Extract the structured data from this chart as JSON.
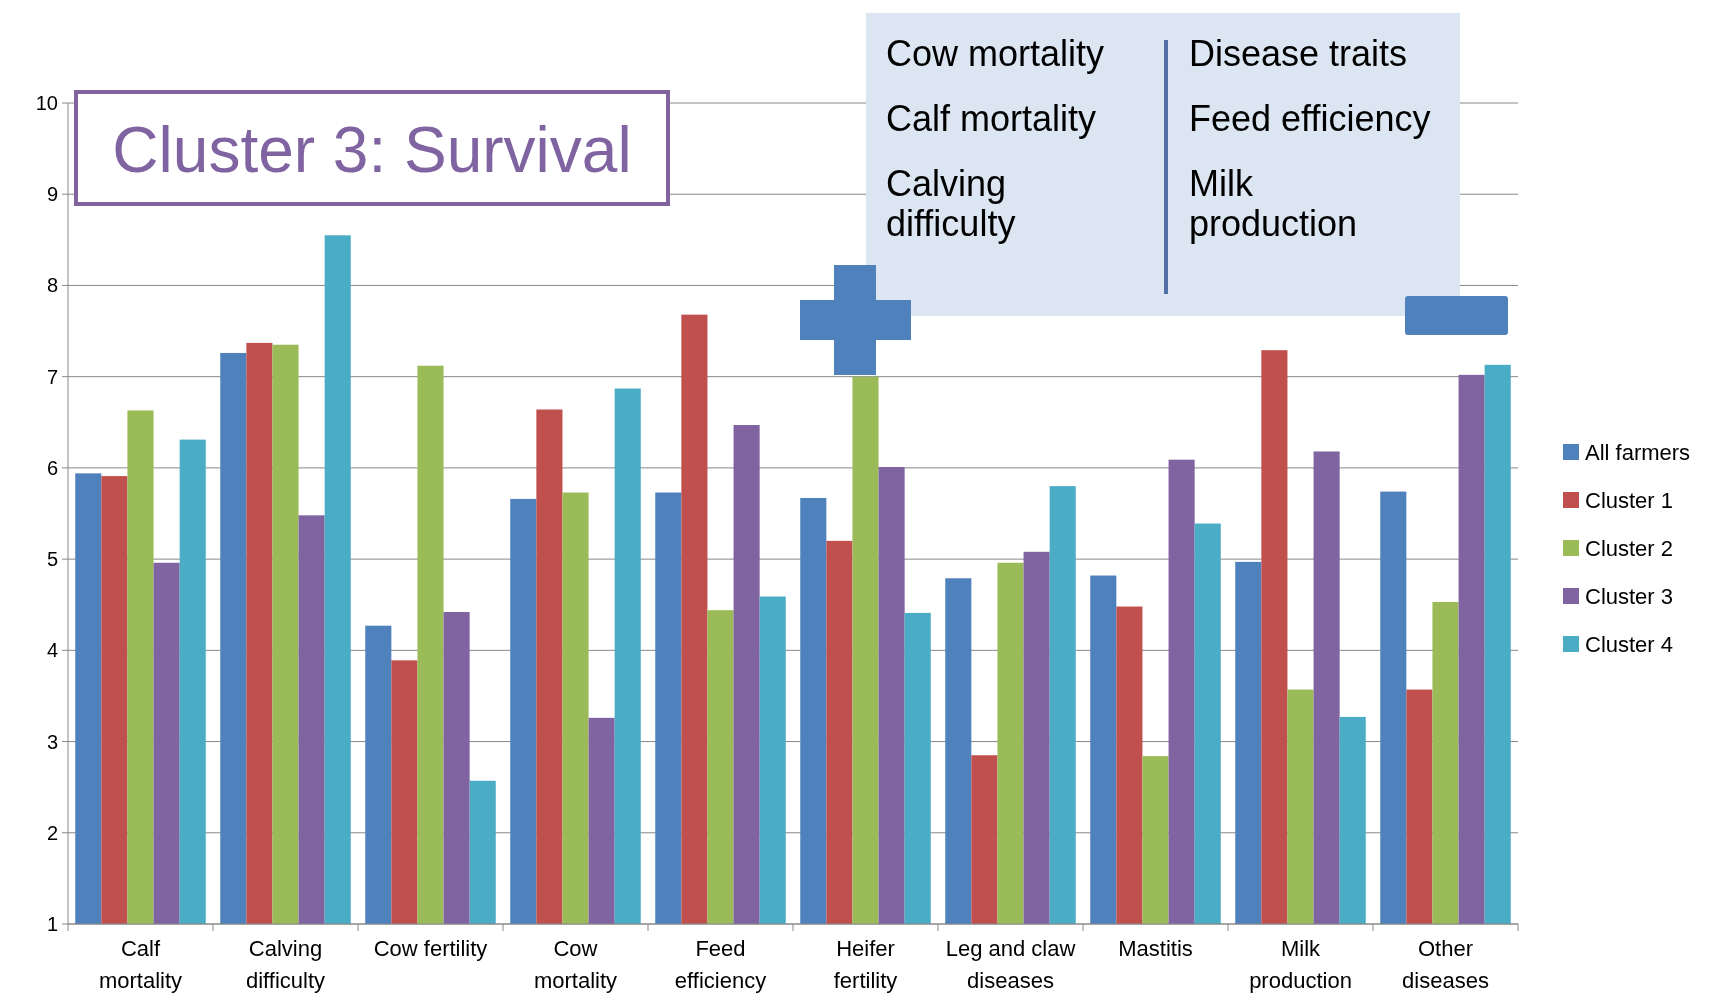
{
  "chart_data": {
    "type": "bar",
    "title": "Cluster 3: Survival",
    "categories": [
      "Calf\nmortality",
      "Calving\ndifficulty",
      "Cow fertility",
      "Cow\nmortality",
      "Feed\nefficiency",
      "Heifer\nfertility",
      "Leg and claw\ndiseases",
      "Mastitis",
      "Milk\nproduction",
      "Other\ndiseases"
    ],
    "series": [
      {
        "name": "All farmers",
        "color": "#4f81bd",
        "values": [
          5.94,
          7.26,
          4.27,
          5.66,
          5.73,
          5.67,
          4.79,
          4.82,
          4.97,
          5.74
        ]
      },
      {
        "name": "Cluster 1",
        "color": "#c0504d",
        "values": [
          5.91,
          7.37,
          3.89,
          6.64,
          7.68,
          5.2,
          2.85,
          4.48,
          7.29,
          3.57
        ]
      },
      {
        "name": "Cluster 2",
        "color": "#9bbb59",
        "values": [
          6.63,
          7.35,
          7.12,
          5.73,
          4.44,
          7.0,
          4.96,
          2.84,
          3.57,
          4.53
        ]
      },
      {
        "name": "Cluster 3",
        "color": "#8064a2",
        "values": [
          4.96,
          5.48,
          4.42,
          3.26,
          6.47,
          6.01,
          5.08,
          6.09,
          6.18,
          7.02
        ]
      },
      {
        "name": "Cluster 4",
        "color": "#4bacc6",
        "values": [
          6.31,
          8.55,
          2.57,
          6.87,
          4.59,
          4.41,
          5.8,
          5.39,
          3.27,
          7.13
        ]
      }
    ],
    "ylim": [
      1,
      10
    ],
    "yticks": [
      1,
      2,
      3,
      4,
      5,
      6,
      7,
      8,
      9,
      10
    ],
    "grid": "y",
    "legend": "right",
    "annotations": [
      "Cow mortality",
      "Calf mortality",
      "Calving\ndifficulty",
      "Disease traits",
      "Feed efficiency",
      "Milk\nproduction"
    ]
  }
}
